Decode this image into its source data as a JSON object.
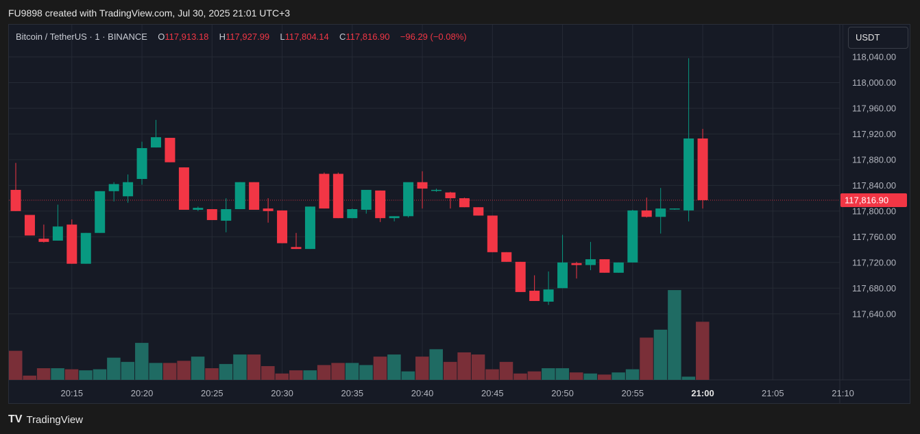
{
  "header": {
    "caption": "FU9898 created with TradingView.com, Jul 30, 2025 21:01 UTC+3"
  },
  "legend": {
    "symbol": "Bitcoin / TetherUS · 1 · BINANCE",
    "o_label": "O",
    "o_value": "117,913.18",
    "h_label": "H",
    "h_value": "117,927.99",
    "l_label": "L",
    "l_value": "117,804.14",
    "c_label": "C",
    "c_value": "117,816.90",
    "change": "−96.29 (−0.08%)"
  },
  "currency_button": "USDT",
  "footer": {
    "logo": "TV",
    "brand": "TradingView"
  },
  "colors": {
    "up": "#089981",
    "down": "#f23645",
    "background": "#161a25",
    "grid": "#252a35",
    "text": "#b2b5be",
    "vol_up": "#1f6b63",
    "vol_down": "#7a2f38"
  },
  "chart_data": {
    "type": "candlestick",
    "interval_minutes": 1,
    "current_price": 117816.9,
    "current_price_label": "117,816.90",
    "y_ticks": [
      {
        "value": 118040,
        "label": "118,040.00"
      },
      {
        "value": 118000,
        "label": "118,000.00"
      },
      {
        "value": 117960,
        "label": "117,960.00"
      },
      {
        "value": 117920,
        "label": "117,920.00"
      },
      {
        "value": 117880,
        "label": "117,880.00"
      },
      {
        "value": 117840,
        "label": "117,840.00"
      },
      {
        "value": 117800,
        "label": "117,800.00"
      },
      {
        "value": 117760,
        "label": "117,760.00"
      },
      {
        "value": 117720,
        "label": "117,720.00"
      },
      {
        "value": 117680,
        "label": "117,680.00"
      },
      {
        "value": 117640,
        "label": "117,640.00"
      }
    ],
    "x_ticks": [
      {
        "time": "20:15",
        "label": "20:15",
        "bold": false
      },
      {
        "time": "20:20",
        "label": "20:20",
        "bold": false
      },
      {
        "time": "20:25",
        "label": "20:25",
        "bold": false
      },
      {
        "time": "20:30",
        "label": "20:30",
        "bold": false
      },
      {
        "time": "20:35",
        "label": "20:35",
        "bold": false
      },
      {
        "time": "20:40",
        "label": "20:40",
        "bold": false
      },
      {
        "time": "20:45",
        "label": "20:45",
        "bold": false
      },
      {
        "time": "20:50",
        "label": "20:50",
        "bold": false
      },
      {
        "time": "20:55",
        "label": "20:55",
        "bold": false
      },
      {
        "time": "21:00",
        "label": "21:00",
        "bold": true
      },
      {
        "time": "21:05",
        "label": "21:05",
        "bold": false
      },
      {
        "time": "21:10",
        "label": "21:10",
        "bold": false
      }
    ],
    "candles": [
      {
        "t": "20:11",
        "o": 117833,
        "h": 117875,
        "l": 117800,
        "c": 117800,
        "v": 0.55
      },
      {
        "t": "20:12",
        "o": 117794,
        "h": 117794,
        "l": 117762,
        "c": 117762,
        "v": 0.08
      },
      {
        "t": "20:13",
        "o": 117757,
        "h": 117779,
        "l": 117751,
        "c": 117752,
        "v": 0.22
      },
      {
        "t": "20:14",
        "o": 117754,
        "h": 117810,
        "l": 117754,
        "c": 117776,
        "v": 0.22
      },
      {
        "t": "20:15",
        "o": 117779,
        "h": 117787,
        "l": 117718,
        "c": 117718,
        "v": 0.2
      },
      {
        "t": "20:16",
        "o": 117718,
        "h": 117766,
        "l": 117718,
        "c": 117766,
        "v": 0.18
      },
      {
        "t": "20:17",
        "o": 117766,
        "h": 117831,
        "l": 117766,
        "c": 117831,
        "v": 0.2
      },
      {
        "t": "20:18",
        "o": 117831,
        "h": 117845,
        "l": 117815,
        "c": 117842,
        "v": 0.42
      },
      {
        "t": "20:19",
        "o": 117823,
        "h": 117857,
        "l": 117813,
        "c": 117845,
        "v": 0.34
      },
      {
        "t": "20:20",
        "o": 117850,
        "h": 117908,
        "l": 117841,
        "c": 117898,
        "v": 0.7
      },
      {
        "t": "20:21",
        "o": 117899,
        "h": 117942,
        "l": 117899,
        "c": 117915,
        "v": 0.32
      },
      {
        "t": "20:22",
        "o": 117914,
        "h": 117914,
        "l": 117876,
        "c": 117876,
        "v": 0.32
      },
      {
        "t": "20:23",
        "o": 117868,
        "h": 117868,
        "l": 117802,
        "c": 117802,
        "v": 0.36
      },
      {
        "t": "20:24",
        "o": 117802,
        "h": 117807,
        "l": 117800,
        "c": 117805,
        "v": 0.44
      },
      {
        "t": "20:25",
        "o": 117803,
        "h": 117803,
        "l": 117786,
        "c": 117786,
        "v": 0.22
      },
      {
        "t": "20:26",
        "o": 117785,
        "h": 117820,
        "l": 117767,
        "c": 117803,
        "v": 0.3
      },
      {
        "t": "20:27",
        "o": 117803,
        "h": 117845,
        "l": 117803,
        "c": 117845,
        "v": 0.48
      },
      {
        "t": "20:28",
        "o": 117845,
        "h": 117845,
        "l": 117802,
        "c": 117802,
        "v": 0.48
      },
      {
        "t": "20:29",
        "o": 117804,
        "h": 117820,
        "l": 117782,
        "c": 117800,
        "v": 0.26
      },
      {
        "t": "20:30",
        "o": 117801,
        "h": 117801,
        "l": 117750,
        "c": 117750,
        "v": 0.12
      },
      {
        "t": "20:31",
        "o": 117744,
        "h": 117766,
        "l": 117741,
        "c": 117741,
        "v": 0.18
      },
      {
        "t": "20:32",
        "o": 117741,
        "h": 117807,
        "l": 117741,
        "c": 117807,
        "v": 0.18
      },
      {
        "t": "20:33",
        "o": 117858,
        "h": 117860,
        "l": 117804,
        "c": 117804,
        "v": 0.28
      },
      {
        "t": "20:34",
        "o": 117858,
        "h": 117860,
        "l": 117789,
        "c": 117789,
        "v": 0.32
      },
      {
        "t": "20:35",
        "o": 117789,
        "h": 117804,
        "l": 117789,
        "c": 117803,
        "v": 0.32
      },
      {
        "t": "20:36",
        "o": 117802,
        "h": 117832,
        "l": 117796,
        "c": 117833,
        "v": 0.28
      },
      {
        "t": "20:37",
        "o": 117832,
        "h": 117832,
        "l": 117783,
        "c": 117789,
        "v": 0.44
      },
      {
        "t": "20:38",
        "o": 117789,
        "h": 117792,
        "l": 117784,
        "c": 117792,
        "v": 0.48
      },
      {
        "t": "20:39",
        "o": 117792,
        "h": 117844,
        "l": 117790,
        "c": 117845,
        "v": 0.16
      },
      {
        "t": "20:40",
        "o": 117845,
        "h": 117862,
        "l": 117804,
        "c": 117835,
        "v": 0.44
      },
      {
        "t": "20:41",
        "o": 117832,
        "h": 117835,
        "l": 117830,
        "c": 117833,
        "v": 0.58
      },
      {
        "t": "20:42",
        "o": 117829,
        "h": 117830,
        "l": 117804,
        "c": 117820,
        "v": 0.34
      },
      {
        "t": "20:43",
        "o": 117820,
        "h": 117821,
        "l": 117806,
        "c": 117806,
        "v": 0.52
      },
      {
        "t": "20:44",
        "o": 117806,
        "h": 117806,
        "l": 117793,
        "c": 117793,
        "v": 0.48
      },
      {
        "t": "20:45",
        "o": 117793,
        "h": 117793,
        "l": 117736,
        "c": 117736,
        "v": 0.2
      },
      {
        "t": "20:46",
        "o": 117736,
        "h": 117736,
        "l": 117721,
        "c": 117721,
        "v": 0.34
      },
      {
        "t": "20:47",
        "o": 117721,
        "h": 117721,
        "l": 117674,
        "c": 117674,
        "v": 0.12
      },
      {
        "t": "20:48",
        "o": 117676,
        "h": 117700,
        "l": 117660,
        "c": 117660,
        "v": 0.16
      },
      {
        "t": "20:49",
        "o": 117659,
        "h": 117706,
        "l": 117654,
        "c": 117678,
        "v": 0.22
      },
      {
        "t": "20:50",
        "o": 117680,
        "h": 117763,
        "l": 117680,
        "c": 117720,
        "v": 0.22
      },
      {
        "t": "20:51",
        "o": 117719,
        "h": 117721,
        "l": 117695,
        "c": 117716,
        "v": 0.14
      },
      {
        "t": "20:52",
        "o": 117716,
        "h": 117752,
        "l": 117708,
        "c": 117725,
        "v": 0.12
      },
      {
        "t": "20:53",
        "o": 117725,
        "h": 117725,
        "l": 117704,
        "c": 117704,
        "v": 0.1
      },
      {
        "t": "20:54",
        "o": 117704,
        "h": 117720,
        "l": 117704,
        "c": 117720,
        "v": 0.14
      },
      {
        "t": "20:55",
        "o": 117720,
        "h": 117802,
        "l": 117720,
        "c": 117801,
        "v": 0.2
      },
      {
        "t": "20:56",
        "o": 117801,
        "h": 117821,
        "l": 117790,
        "c": 117791,
        "v": 0.8
      },
      {
        "t": "20:57",
        "o": 117791,
        "h": 117836,
        "l": 117765,
        "c": 117804,
        "v": 0.95
      },
      {
        "t": "20:58",
        "o": 117803,
        "h": 117804,
        "l": 117802,
        "c": 117804,
        "v": 1.7
      },
      {
        "t": "20:59",
        "o": 117801,
        "h": 118038,
        "l": 117784,
        "c": 117913,
        "v": 0.06
      },
      {
        "t": "21:00",
        "o": 117913,
        "h": 117928,
        "l": 117804,
        "c": 117817,
        "v": 1.1
      }
    ]
  }
}
